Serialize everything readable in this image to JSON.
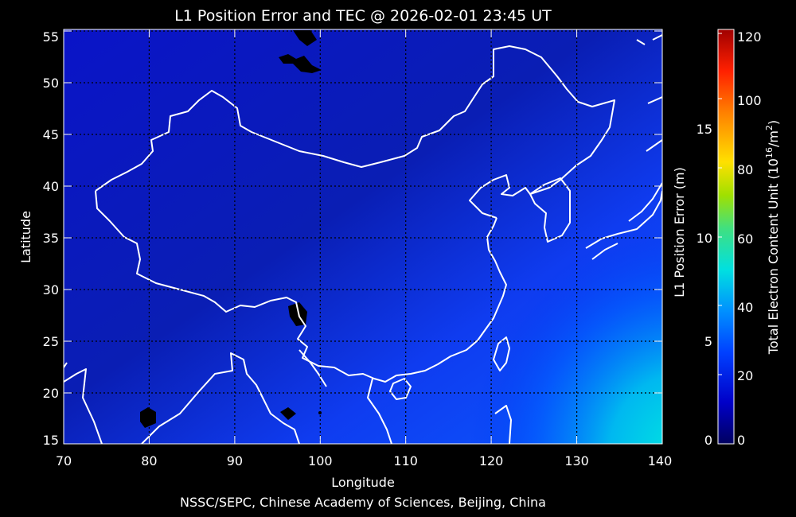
{
  "title": "L1 Position Error and TEC @ 2026-02-01 23:45 UT",
  "credit": "NSSC/SEPC, Chinese Academy of Sciences, Beijing, China",
  "x_axis": {
    "label": "Longitude",
    "ticks": [
      "70",
      "80",
      "90",
      "100",
      "110",
      "120",
      "130",
      "140"
    ]
  },
  "y_axis": {
    "label": "Latitude",
    "ticks": [
      "15",
      "20",
      "25",
      "30",
      "35",
      "40",
      "45",
      "50",
      "55"
    ]
  },
  "right_axis": {
    "label": "L1 Position Error (m)",
    "ticks": [
      "0",
      "5",
      "10",
      "15"
    ]
  },
  "colorbar": {
    "label": "Total Electron Content Unit (10",
    "label_exp1": "16",
    "label_mid": "/m",
    "label_exp2": "2",
    "label_end": ")",
    "ticks": [
      "0",
      "20",
      "40",
      "60",
      "80",
      "100",
      "120"
    ],
    "colors": [
      "#000060",
      "#0000c8",
      "#0040ff",
      "#0090ff",
      "#00e0e0",
      "#40e080",
      "#a0e000",
      "#ffe000",
      "#ff8000",
      "#ff2000",
      "#a00000"
    ]
  }
}
